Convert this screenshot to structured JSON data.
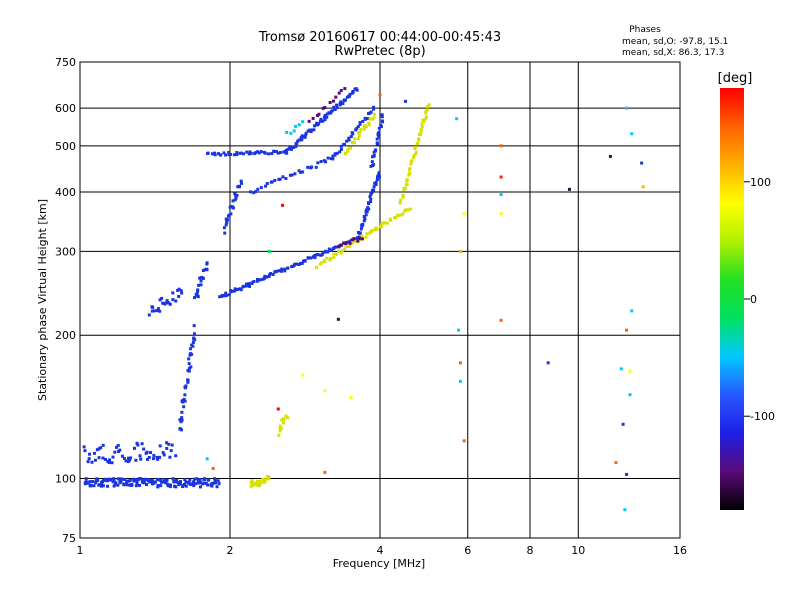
{
  "header": {
    "title_line1": "Tromsø 20160617 00:44:00-00:45:43",
    "title_line2": "RwPretec (8p)"
  },
  "stats": {
    "heading": "Phases",
    "o_line": "mean, sd,O:  -97.8, 15.1",
    "x_line": "mean, sd,X:   86.3, 17.3"
  },
  "chart_data": {
    "type": "scatter",
    "title": "Tromsø 20160617 00:44:00-00:45:43",
    "subtitle": "RwPretec (8p)",
    "xlabel": "Frequency [MHz]",
    "ylabel": "Stationary phase Virtual Height [km]",
    "x_scale": "log",
    "y_scale": "log",
    "xlim": [
      1,
      16
    ],
    "ylim": [
      75,
      750
    ],
    "x_ticks": [
      {
        "value": 1,
        "label": "1"
      },
      {
        "value": 2,
        "label": "2"
      },
      {
        "value": 4,
        "label": "4"
      },
      {
        "value": 6,
        "label": "6"
      },
      {
        "value": 8,
        "label": "8"
      },
      {
        "value": 10,
        "label": "10"
      },
      {
        "value": 16,
        "label": "16"
      }
    ],
    "x_gridlines": [
      2,
      4,
      6,
      8,
      10
    ],
    "y_ticks": [
      {
        "value": 75,
        "label": "75"
      },
      {
        "value": 100,
        "label": "100"
      },
      {
        "value": 200,
        "label": "200"
      },
      {
        "value": 300,
        "label": "300"
      },
      {
        "value": 400,
        "label": "400"
      },
      {
        "value": 500,
        "label": "500"
      },
      {
        "value": 600,
        "label": "600"
      },
      {
        "value": 750,
        "label": "750"
      }
    ],
    "y_gridlines": [
      100,
      200,
      300,
      400,
      500,
      600
    ],
    "grid": true,
    "colorbar": {
      "label": "[deg]",
      "range": [
        -180,
        180
      ],
      "ticks": [
        {
          "value": 100,
          "label": "100"
        },
        {
          "value": 0,
          "label": "0"
        },
        {
          "value": -100,
          "label": "-100"
        }
      ],
      "colors": [
        "#000000",
        "#5a0a78",
        "#1e1ee6",
        "#2858ff",
        "#00c8ff",
        "#00e060",
        "#22e022",
        "#b0f000",
        "#ffff00",
        "#ffb000",
        "#ff6000",
        "#ff0000"
      ]
    },
    "series": [
      {
        "color": "#1a35e0",
        "segments": [
          {
            "from": [
              1.02,
              98
            ],
            "to": [
              1.9,
              98
            ],
            "n": 160,
            "jitter": 4
          },
          {
            "from": [
              1.02,
              112
            ],
            "to": [
              1.55,
              115
            ],
            "n": 60,
            "jitter": 10
          },
          {
            "from": [
              1.58,
              125
            ],
            "to": [
              1.7,
              205
            ],
            "n": 40,
            "jitter": 10
          },
          {
            "from": [
              1.38,
              225
            ],
            "to": [
              1.6,
              245
            ],
            "n": 25,
            "jitter": 15
          },
          {
            "from": [
              1.7,
              240
            ],
            "to": [
              1.8,
              280
            ],
            "n": 20,
            "jitter": 15
          },
          {
            "from": [
              1.9,
              240
            ],
            "to": [
              3.6,
              320
            ],
            "n": 90,
            "jitter": 4
          },
          {
            "from": [
              3.6,
              320
            ],
            "to": [
              4.0,
              440
            ],
            "n": 40,
            "jitter": 6
          },
          {
            "from": [
              1.8,
              480
            ],
            "to": [
              2.6,
              485
            ],
            "n": 40,
            "jitter": 6
          },
          {
            "from": [
              2.6,
              485
            ],
            "to": [
              3.6,
              660
            ],
            "n": 70,
            "jitter": 10
          },
          {
            "from": [
              2.2,
              400
            ],
            "to": [
              3.2,
              470
            ],
            "n": 30,
            "jitter": 8
          },
          {
            "from": [
              3.2,
              470
            ],
            "to": [
              3.9,
              600
            ],
            "n": 30,
            "jitter": 10
          },
          {
            "from": [
              1.95,
              330
            ],
            "to": [
              2.1,
              420
            ],
            "n": 25,
            "jitter": 15
          },
          {
            "from": [
              3.85,
              450
            ],
            "to": [
              4.05,
              580
            ],
            "n": 25,
            "jitter": 10
          }
        ]
      },
      {
        "color": "#d8e000",
        "segments": [
          {
            "from": [
              3.0,
              280
            ],
            "to": [
              4.6,
              370
            ],
            "n": 50,
            "jitter": 5
          },
          {
            "from": [
              4.4,
              380
            ],
            "to": [
              5.0,
              610
            ],
            "n": 45,
            "jitter": 8
          },
          {
            "from": [
              3.4,
              480
            ],
            "to": [
              3.9,
              580
            ],
            "n": 25,
            "jitter": 10
          },
          {
            "from": [
              2.2,
              97
            ],
            "to": [
              2.4,
              100
            ],
            "n": 25,
            "jitter": 4
          },
          {
            "from": [
              2.5,
              125
            ],
            "to": [
              2.6,
              135
            ],
            "n": 12,
            "jitter": 5
          }
        ]
      },
      {
        "color": "#5a0a78",
        "segments": [
          {
            "from": [
              2.9,
              560
            ],
            "to": [
              3.4,
              660
            ],
            "n": 12,
            "jitter": 10
          },
          {
            "from": [
              3.3,
              310
            ],
            "to": [
              3.7,
              320
            ],
            "n": 10,
            "jitter": 5
          }
        ]
      },
      {
        "color": "#00c8ff",
        "segments": [
          {
            "from": [
              2.6,
              530
            ],
            "to": [
              2.8,
              560
            ],
            "n": 6,
            "jitter": 10
          }
        ]
      }
    ],
    "points": [
      {
        "x": 5.7,
        "y": 570,
        "color": "#00c8ff"
      },
      {
        "x": 5.9,
        "y": 360,
        "color": "#ffff00"
      },
      {
        "x": 5.8,
        "y": 300,
        "color": "#ffb000"
      },
      {
        "x": 5.75,
        "y": 205,
        "color": "#00c8ff"
      },
      {
        "x": 5.8,
        "y": 175,
        "color": "#ff6000"
      },
      {
        "x": 5.8,
        "y": 160,
        "color": "#00c8ff"
      },
      {
        "x": 5.9,
        "y": 120,
        "color": "#ff6000"
      },
      {
        "x": 7.0,
        "y": 500,
        "color": "#ff6000"
      },
      {
        "x": 7.0,
        "y": 430,
        "color": "#ff2000"
      },
      {
        "x": 7.0,
        "y": 395,
        "color": "#00c8ff"
      },
      {
        "x": 7.0,
        "y": 360,
        "color": "#ffff00"
      },
      {
        "x": 7.0,
        "y": 215,
        "color": "#ff6000"
      },
      {
        "x": 8.7,
        "y": 175,
        "color": "#1a35e0"
      },
      {
        "x": 9.6,
        "y": 405,
        "color": "#1a1a40"
      },
      {
        "x": 11.6,
        "y": 475,
        "color": "#1a1a40"
      },
      {
        "x": 12.5,
        "y": 600,
        "color": "#00c8ff"
      },
      {
        "x": 12.8,
        "y": 530,
        "color": "#00c8ff"
      },
      {
        "x": 13.4,
        "y": 460,
        "color": "#1a35e0"
      },
      {
        "x": 13.5,
        "y": 410,
        "color": "#ffb000"
      },
      {
        "x": 12.8,
        "y": 225,
        "color": "#00c8ff"
      },
      {
        "x": 12.5,
        "y": 205,
        "color": "#ff6000"
      },
      {
        "x": 12.2,
        "y": 170,
        "color": "#00c8ff"
      },
      {
        "x": 12.7,
        "y": 168,
        "color": "#ffff00"
      },
      {
        "x": 12.7,
        "y": 150,
        "color": "#00c8ff"
      },
      {
        "x": 12.3,
        "y": 130,
        "color": "#1a35e0"
      },
      {
        "x": 11.9,
        "y": 108,
        "color": "#ff6000"
      },
      {
        "x": 12.5,
        "y": 102,
        "color": "#1a35e0"
      },
      {
        "x": 12.4,
        "y": 86,
        "color": "#00c8ff"
      },
      {
        "x": 2.8,
        "y": 165,
        "color": "#ffff00"
      },
      {
        "x": 3.1,
        "y": 153,
        "color": "#ffff00"
      },
      {
        "x": 3.5,
        "y": 148,
        "color": "#ffff00"
      },
      {
        "x": 2.5,
        "y": 140,
        "color": "#ff0000"
      },
      {
        "x": 3.1,
        "y": 103,
        "color": "#ff6000"
      },
      {
        "x": 3.3,
        "y": 216,
        "color": "#1a1a40"
      },
      {
        "x": 4.0,
        "y": 640,
        "color": "#ff6000"
      },
      {
        "x": 4.5,
        "y": 620,
        "color": "#1a35e0"
      },
      {
        "x": 2.4,
        "y": 300,
        "color": "#00e060"
      },
      {
        "x": 2.55,
        "y": 375,
        "color": "#ff0000"
      },
      {
        "x": 1.85,
        "y": 105,
        "color": "#ff6000"
      },
      {
        "x": 1.8,
        "y": 110,
        "color": "#00c8ff"
      }
    ]
  }
}
